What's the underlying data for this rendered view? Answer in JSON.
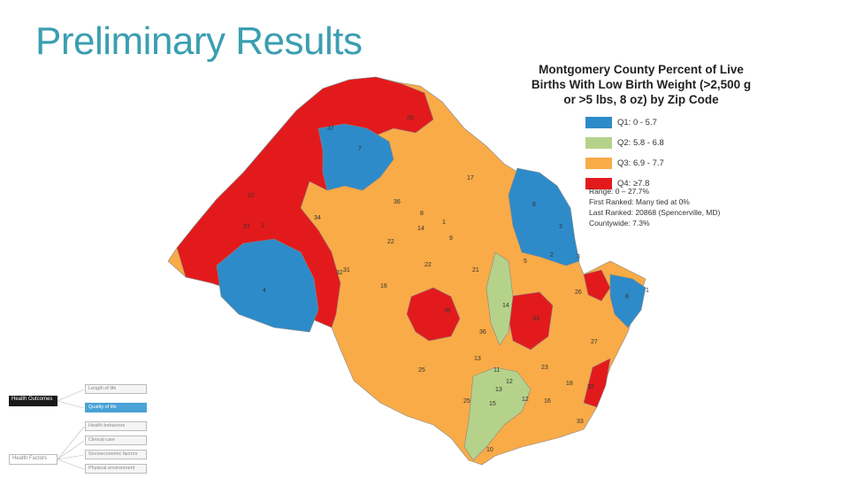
{
  "slide": {
    "title": "Preliminary Results"
  },
  "map": {
    "title_lines": [
      "Montgomery County Percent of Live",
      "Births With Low Birth Weight (>2,500 g",
      "or >5 lbs, 8 oz) by Zip Code"
    ],
    "legend": [
      {
        "label": "Q1: 0 - 5.7",
        "color": "#2e8bc9"
      },
      {
        "label": "Q2: 5.8 - 6.8",
        "color": "#b5d28a"
      },
      {
        "label": "Q3: 6.9 - 7.7",
        "color": "#f9ab47"
      },
      {
        "label": "Q4: ≥7.8",
        "color": "#e31a1c"
      }
    ],
    "stats": [
      "Range: 0 – 27.7%",
      "First Ranked: Many tied at 0%",
      "Last Ranked: 20868 (Spencerville, MD)",
      "Countywide: 7.3%"
    ],
    "region_labels": [
      "20",
      "37",
      "7",
      "17",
      "37",
      "36",
      "6",
      "34",
      "8",
      "14",
      "1",
      "37",
      "1",
      "22",
      "9",
      "3",
      "31",
      "5",
      "2",
      "3",
      "4",
      "32",
      "22",
      "21",
      "16",
      "26",
      "8",
      "14",
      "35",
      "33",
      "1",
      "27",
      "25",
      "36",
      "13",
      "11",
      "23",
      "12",
      "18",
      "32",
      "25",
      "13",
      "15",
      "12",
      "16",
      "33",
      "10"
    ]
  },
  "nav": {
    "left": [
      "Health Outcomes",
      "Health Factors"
    ],
    "right": [
      "Length of life",
      "Quality of life",
      "Health behaviors",
      "Clinical care",
      "Socioeconomic factors",
      "Physical environment"
    ]
  }
}
